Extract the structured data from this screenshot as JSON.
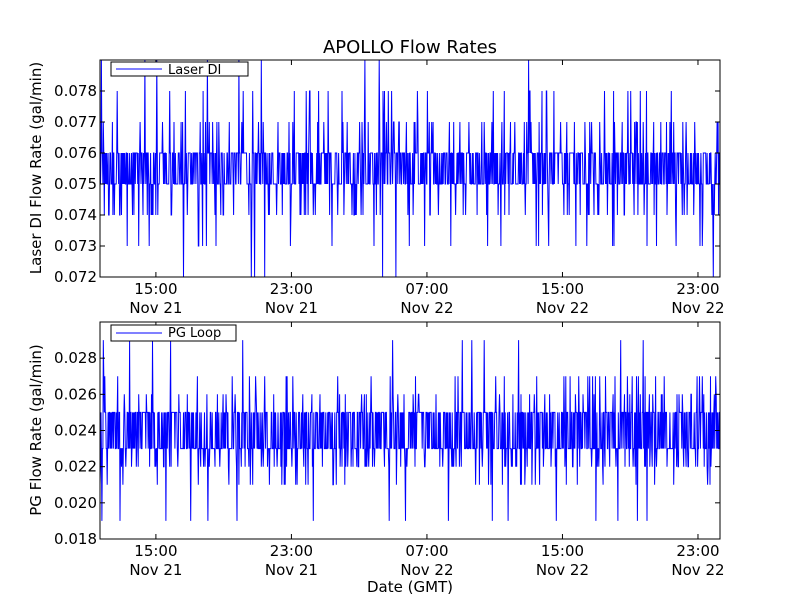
{
  "chart_data": {
    "type": "line",
    "title": "APOLLO Flow Rates",
    "xlabel": "Date (GMT)",
    "x_ticks": [
      {
        "time": "15:00",
        "date": "Nov 21"
      },
      {
        "time": "23:00",
        "date": "Nov 21"
      },
      {
        "time": "07:00",
        "date": "Nov 22"
      },
      {
        "time": "15:00",
        "date": "Nov 22"
      },
      {
        "time": "23:00",
        "date": "Nov 22"
      }
    ],
    "x_tick_hours": [
      15,
      23,
      31,
      39,
      47
    ],
    "xlim_hours": [
      11.7,
      48.3
    ],
    "series_color": "#0000ff",
    "panels": [
      {
        "ylabel": "Laser DI Flow Rate (gal/min)",
        "series_name": "Laser DI",
        "ylim": [
          0.072,
          0.079
        ],
        "yticks": [
          "0.072",
          "0.073",
          "0.074",
          "0.075",
          "0.076",
          "0.077",
          "0.078"
        ],
        "baseline_low": 0.075,
        "baseline_high": 0.076,
        "occasional_low": [
          0.074,
          0.073
        ],
        "occasional_high": [
          0.077,
          0.078
        ],
        "rare_low": 0.072,
        "rare_high": 0.079
      },
      {
        "ylabel": "PG Flow Rate (gal/min)",
        "series_name": "PG Loop",
        "ylim": [
          0.018,
          0.03
        ],
        "yticks": [
          "0.018",
          "0.020",
          "0.022",
          "0.024",
          "0.026",
          "0.028"
        ],
        "baseline_low": 0.023,
        "baseline_high": 0.025,
        "occasional_low": [
          0.022,
          0.021
        ],
        "occasional_high": [
          0.026,
          0.027
        ],
        "rare_low": 0.019,
        "rare_high": 0.029
      }
    ]
  }
}
